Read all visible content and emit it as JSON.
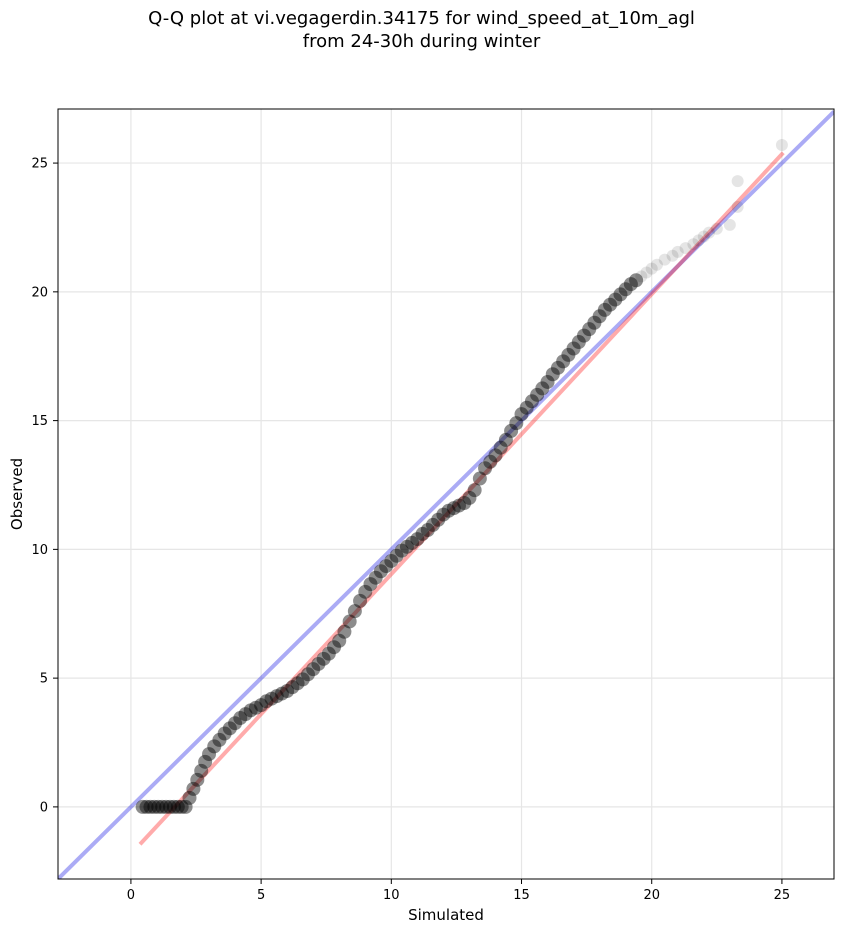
{
  "chart_data": {
    "type": "scatter",
    "title": "Q-Q plot at vi.vegagerdin.34175 for wind_speed_at_10m_agl",
    "subtitle": "from 24-30h during winter",
    "xlabel": "Simulated",
    "ylabel": "Observed",
    "xlim": [
      -2.8,
      27.0
    ],
    "ylim": [
      -2.8,
      27.1
    ],
    "xticks": [
      0,
      5,
      10,
      15,
      20,
      25
    ],
    "yticks": [
      0,
      5,
      10,
      15,
      20,
      25
    ],
    "grid": true,
    "reference_line": {
      "color": "#0000e0",
      "x": [
        -2.8,
        27.0
      ],
      "y": [
        -2.8,
        27.0
      ]
    },
    "fit_line": {
      "color": "#ff0000",
      "x": [
        0.35,
        25.05
      ],
      "y": [
        -1.45,
        25.4
      ]
    },
    "point_color": "#000000",
    "points": {
      "x": [
        0.45,
        0.6,
        0.75,
        0.9,
        1.05,
        1.2,
        1.35,
        1.5,
        1.65,
        1.8,
        1.95,
        2.1,
        2.25,
        2.4,
        2.55,
        2.7,
        2.85,
        3.0,
        3.2,
        3.4,
        3.6,
        3.8,
        4.0,
        4.2,
        4.4,
        4.6,
        4.8,
        5.0,
        5.2,
        5.4,
        5.6,
        5.8,
        6.0,
        6.2,
        6.4,
        6.6,
        6.8,
        7.0,
        7.2,
        7.4,
        7.6,
        7.8,
        8.0,
        8.2,
        8.4,
        8.6,
        8.8,
        9.0,
        9.2,
        9.4,
        9.6,
        9.8,
        10.0,
        10.2,
        10.4,
        10.6,
        10.8,
        11.0,
        11.2,
        11.4,
        11.6,
        11.8,
        12.0,
        12.2,
        12.4,
        12.6,
        12.8,
        13.0,
        13.2,
        13.4,
        13.6,
        13.8,
        14.0,
        14.2,
        14.4,
        14.6,
        14.8,
        15.0,
        15.2,
        15.4,
        15.6,
        15.8,
        16.0,
        16.2,
        16.4,
        16.6,
        16.8,
        17.0,
        17.2,
        17.4,
        17.6,
        17.8,
        18.0,
        18.2,
        18.4,
        18.6,
        18.8,
        19.0,
        19.2,
        19.4,
        19.6,
        19.8,
        20.0,
        20.2,
        20.5,
        20.8,
        21.0,
        21.3,
        21.6,
        21.8,
        22.0,
        22.2,
        22.5,
        23.0,
        23.3,
        23.3,
        25.0
      ],
      "y": [
        0.0,
        0.0,
        0.0,
        0.0,
        0.0,
        0.0,
        0.0,
        0.0,
        0.0,
        0.0,
        0.0,
        0.0,
        0.35,
        0.7,
        1.05,
        1.4,
        1.75,
        2.05,
        2.35,
        2.6,
        2.85,
        3.05,
        3.25,
        3.45,
        3.6,
        3.75,
        3.85,
        3.95,
        4.1,
        4.2,
        4.3,
        4.4,
        4.5,
        4.65,
        4.8,
        4.95,
        5.15,
        5.35,
        5.55,
        5.75,
        5.95,
        6.2,
        6.45,
        6.8,
        7.2,
        7.6,
        8.0,
        8.35,
        8.65,
        8.9,
        9.15,
        9.35,
        9.55,
        9.75,
        9.95,
        10.1,
        10.25,
        10.4,
        10.6,
        10.75,
        10.95,
        11.15,
        11.35,
        11.5,
        11.6,
        11.7,
        11.8,
        12.0,
        12.3,
        12.75,
        13.15,
        13.4,
        13.65,
        13.95,
        14.25,
        14.6,
        14.9,
        15.25,
        15.5,
        15.75,
        16.0,
        16.25,
        16.5,
        16.8,
        17.05,
        17.3,
        17.55,
        17.8,
        18.05,
        18.3,
        18.55,
        18.8,
        19.05,
        19.3,
        19.5,
        19.7,
        19.9,
        20.1,
        20.3,
        20.45,
        20.6,
        20.75,
        20.9,
        21.05,
        21.25,
        21.4,
        21.55,
        21.7,
        21.85,
        22.0,
        22.15,
        22.3,
        22.45,
        22.6,
        23.3,
        24.3,
        25.7
      ]
    }
  }
}
